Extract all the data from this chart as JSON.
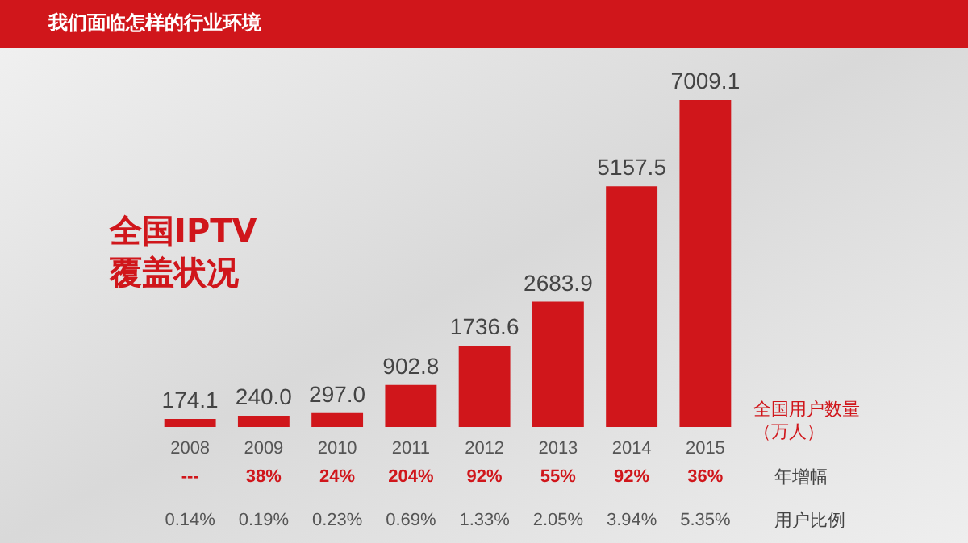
{
  "chart_data": {
    "type": "bar",
    "title": "我们面临怎样的行业环境",
    "subtitle": "全国IPTV覆盖状况",
    "ylabel": "全国用户数量（万人）",
    "categories": [
      "2008",
      "2009",
      "2010",
      "2011",
      "2012",
      "2013",
      "2014",
      "2015"
    ],
    "values": [
      174.1,
      240.0,
      297.0,
      902.8,
      1736.6,
      2683.9,
      5157.5,
      7009.1
    ],
    "value_labels": [
      "174.1",
      "240.0",
      "297.0",
      "902.8",
      "1736.6",
      "2683.9",
      "5157.5",
      "7009.1"
    ],
    "color": "#d0161b",
    "annotations": [
      "---",
      "38%",
      "24%",
      "204%",
      "92%",
      "55%",
      "92%",
      "36%",
      "年增幅",
      "0.14%",
      "0.19%",
      "0.23%",
      "0.69%",
      "1.33%",
      "2.05%",
      "3.94%",
      "5.35%",
      "用户比例"
    ]
  }
}
